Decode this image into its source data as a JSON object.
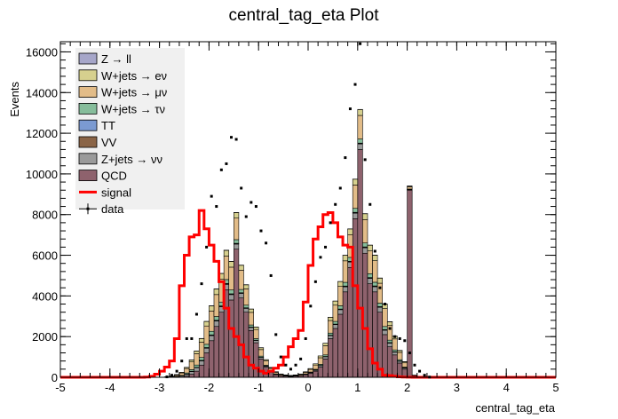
{
  "chart_data": {
    "type": "bar",
    "title": "central_tag_eta Plot",
    "xlabel": "central_tag_eta",
    "ylabel": "Events",
    "xlim": [
      -5,
      5
    ],
    "ylim": [
      0,
      16500
    ],
    "x_ticks": [
      "-5",
      "-4",
      "-3",
      "-2",
      "-1",
      "0",
      "1",
      "2",
      "3",
      "4",
      "5"
    ],
    "y_ticks": [
      "0",
      "2000",
      "4000",
      "6000",
      "8000",
      "10000",
      "12000",
      "14000",
      "16000"
    ],
    "bin_edges_start": -5,
    "bin_width": 0.1,
    "stack_order": [
      "QCD",
      "Z+jets → νν",
      "VV",
      "TT",
      "W+jets → τν",
      "W+jets → μν",
      "W+jets → eν",
      "Z → ll"
    ],
    "series": [
      {
        "name": "Z → ll",
        "color": "#a6a6c9",
        "values": [
          0,
          0,
          0,
          0,
          0,
          0,
          0,
          0,
          0,
          0,
          0,
          0,
          0,
          0,
          0,
          0,
          0,
          0,
          0,
          0,
          0,
          0,
          0,
          1,
          1,
          2,
          3,
          4,
          6,
          7,
          7,
          8,
          8,
          8,
          8,
          8,
          7,
          6,
          5,
          4,
          3,
          3,
          2,
          2,
          1,
          1,
          1,
          1,
          0,
          0,
          0,
          0,
          0,
          1,
          1,
          1,
          2,
          2,
          3,
          4,
          5,
          6,
          7,
          8,
          8,
          8,
          8,
          8,
          7,
          7,
          6,
          4,
          3,
          2,
          1,
          1,
          0,
          0,
          0,
          0,
          0,
          0,
          0,
          0,
          0,
          0,
          0,
          0,
          0,
          0,
          0,
          0,
          0,
          0,
          0,
          0,
          0,
          0,
          0,
          0
        ]
      },
      {
        "name": "W+jets → eν",
        "color": "#d6d08e",
        "values": [
          0,
          0,
          0,
          0,
          0,
          0,
          0,
          0,
          0,
          0,
          0,
          0,
          0,
          0,
          0,
          0,
          0,
          0,
          0,
          0,
          2,
          4,
          10,
          20,
          35,
          55,
          90,
          130,
          180,
          220,
          250,
          270,
          280,
          285,
          280,
          270,
          240,
          200,
          160,
          120,
          90,
          60,
          40,
          25,
          15,
          10,
          8,
          10,
          15,
          25,
          40,
          60,
          90,
          120,
          160,
          200,
          240,
          270,
          280,
          285,
          290,
          285,
          280,
          270,
          250,
          220,
          180,
          130,
          90,
          55,
          35,
          20,
          10,
          4,
          2,
          0,
          0,
          0,
          0,
          0,
          0,
          0,
          0,
          0,
          0,
          0,
          0,
          0,
          0,
          0,
          0,
          0,
          0,
          0,
          0,
          0,
          0,
          0,
          0,
          0
        ]
      },
      {
        "name": "W+jets → μν",
        "color": "#e2bc88",
        "values": [
          0,
          0,
          0,
          0,
          0,
          0,
          0,
          0,
          0,
          0,
          0,
          0,
          0,
          0,
          0,
          0,
          0,
          0,
          0,
          0,
          3,
          8,
          25,
          60,
          120,
          220,
          380,
          560,
          750,
          900,
          1000,
          1080,
          1120,
          1150,
          1120,
          1060,
          950,
          800,
          620,
          450,
          320,
          210,
          130,
          80,
          45,
          30,
          25,
          30,
          45,
          80,
          130,
          210,
          320,
          450,
          620,
          800,
          950,
          1060,
          1120,
          1150,
          1160,
          1150,
          1120,
          1060,
          980,
          880,
          720,
          540,
          360,
          210,
          110,
          50,
          20,
          8,
          3,
          0,
          0,
          0,
          0,
          0,
          0,
          0,
          0,
          0,
          0,
          0,
          0,
          0,
          0,
          0,
          0,
          0,
          0,
          0,
          0,
          0,
          0,
          0,
          0,
          0
        ]
      },
      {
        "name": "W+jets → τν",
        "color": "#86bd9b",
        "values": [
          0,
          0,
          0,
          0,
          0,
          0,
          0,
          0,
          0,
          0,
          0,
          0,
          0,
          0,
          0,
          0,
          0,
          0,
          0,
          0,
          1,
          3,
          8,
          15,
          30,
          50,
          80,
          110,
          140,
          160,
          175,
          185,
          190,
          195,
          190,
          180,
          160,
          130,
          100,
          75,
          55,
          35,
          25,
          15,
          10,
          8,
          6,
          8,
          10,
          15,
          25,
          35,
          55,
          75,
          100,
          130,
          160,
          180,
          190,
          195,
          200,
          195,
          190,
          180,
          170,
          150,
          120,
          90,
          60,
          35,
          20,
          10,
          5,
          2,
          1,
          0,
          0,
          0,
          0,
          0,
          0,
          0,
          0,
          0,
          0,
          0,
          0,
          0,
          0,
          0,
          0,
          0,
          0,
          0,
          0,
          0,
          0,
          0,
          0,
          0
        ]
      },
      {
        "name": "TT",
        "color": "#7b9ad1",
        "values": [
          0,
          0,
          0,
          0,
          0,
          0,
          0,
          0,
          0,
          0,
          0,
          0,
          0,
          0,
          0,
          0,
          0,
          0,
          0,
          0,
          0,
          0,
          1,
          2,
          3,
          5,
          7,
          9,
          11,
          12,
          13,
          14,
          15,
          15,
          15,
          14,
          12,
          10,
          8,
          6,
          4,
          3,
          2,
          1,
          1,
          1,
          1,
          1,
          1,
          1,
          2,
          3,
          4,
          6,
          8,
          10,
          12,
          14,
          15,
          15,
          15,
          15,
          14,
          14,
          13,
          12,
          10,
          8,
          6,
          4,
          3,
          2,
          1,
          0,
          0,
          0,
          0,
          0,
          0,
          0,
          0,
          0,
          0,
          0,
          0,
          0,
          0,
          0,
          0,
          0,
          0,
          0,
          0,
          0,
          0,
          0,
          0,
          0,
          0,
          0
        ]
      },
      {
        "name": "VV",
        "color": "#8a6446",
        "values": [
          0,
          0,
          0,
          0,
          0,
          0,
          0,
          0,
          0,
          0,
          0,
          0,
          0,
          0,
          0,
          0,
          0,
          0,
          0,
          0,
          0,
          0,
          1,
          2,
          4,
          7,
          10,
          14,
          18,
          20,
          22,
          24,
          25,
          26,
          25,
          23,
          20,
          17,
          14,
          10,
          7,
          5,
          3,
          2,
          1,
          1,
          1,
          1,
          1,
          2,
          3,
          5,
          7,
          10,
          14,
          17,
          20,
          23,
          25,
          26,
          26,
          26,
          25,
          24,
          22,
          20,
          17,
          13,
          9,
          6,
          3,
          2,
          1,
          0,
          0,
          0,
          0,
          0,
          0,
          0,
          0,
          0,
          0,
          0,
          0,
          0,
          0,
          0,
          0,
          0,
          0,
          0,
          0,
          0,
          0,
          0,
          0,
          0,
          0,
          0
        ]
      },
      {
        "name": "Z+jets → νν",
        "color": "#9a9a9a",
        "values": [
          0,
          0,
          0,
          0,
          0,
          0,
          0,
          0,
          0,
          0,
          0,
          0,
          0,
          0,
          0,
          0,
          0,
          0,
          0,
          0,
          2,
          5,
          15,
          30,
          55,
          90,
          130,
          170,
          205,
          230,
          250,
          265,
          270,
          270,
          265,
          250,
          225,
          190,
          150,
          110,
          75,
          50,
          30,
          18,
          10,
          7,
          6,
          7,
          10,
          18,
          30,
          50,
          75,
          110,
          150,
          190,
          225,
          250,
          265,
          270,
          275,
          270,
          265,
          255,
          240,
          215,
          180,
          135,
          90,
          55,
          30,
          15,
          5,
          2,
          1,
          0,
          0,
          0,
          0,
          0,
          0,
          0,
          0,
          0,
          0,
          0,
          0,
          0,
          0,
          0,
          0,
          0,
          0,
          0,
          0,
          0,
          0,
          0,
          0,
          0
        ]
      },
      {
        "name": "QCD",
        "color": "#8e626d",
        "values": [
          0,
          0,
          0,
          0,
          0,
          0,
          0,
          0,
          0,
          0,
          0,
          0,
          0,
          0,
          0,
          0,
          0,
          0,
          0,
          0,
          0,
          0,
          0,
          0,
          0,
          60,
          150,
          300,
          600,
          1200,
          1800,
          2500,
          3200,
          4300,
          3800,
          6300,
          3900,
          3200,
          2300,
          1700,
          900,
          500,
          250,
          130,
          80,
          60,
          40,
          60,
          80,
          130,
          200,
          300,
          500,
          900,
          1900,
          2400,
          3100,
          4200,
          5400,
          7800,
          11200,
          6100,
          4600,
          4200,
          3200,
          2100,
          1500,
          1100,
          700,
          400,
          9200,
          0,
          0,
          0,
          0,
          0,
          0,
          0,
          0,
          0,
          0,
          0,
          0,
          0,
          0,
          0,
          0,
          0,
          0,
          0,
          0,
          0,
          0,
          0,
          0,
          0,
          0,
          0,
          0,
          0
        ]
      },
      {
        "name": "signal",
        "color": "#ff0000",
        "values": [
          0,
          0,
          0,
          0,
          0,
          0,
          0,
          0,
          0,
          0,
          0,
          0,
          0,
          0,
          0,
          0,
          0,
          10,
          50,
          150,
          300,
          500,
          800,
          1900,
          4500,
          6000,
          6900,
          7000,
          8200,
          7300,
          6500,
          5700,
          4700,
          3400,
          2400,
          2000,
          1600,
          1000,
          600,
          450,
          300,
          200,
          300,
          450,
          600,
          1000,
          1500,
          1900,
          2300,
          3700,
          5500,
          6800,
          7400,
          8000,
          8100,
          7600,
          6900,
          6500,
          6400,
          4500,
          3400,
          2400,
          1400,
          700,
          400,
          100,
          80,
          50,
          20,
          10,
          5,
          0,
          0,
          0,
          0,
          0,
          0,
          0,
          0,
          0,
          0,
          0,
          0,
          0,
          0,
          0,
          0,
          0,
          0,
          0,
          0,
          0,
          0,
          0,
          0,
          0,
          0,
          0,
          0,
          0
        ]
      },
      {
        "name": "data",
        "color": "#000000",
        "values": [
          0,
          0,
          0,
          0,
          0,
          0,
          0,
          0,
          0,
          0,
          0,
          0,
          0,
          0,
          0,
          0,
          0,
          0,
          0,
          0,
          0,
          20,
          100,
          300,
          800,
          1900,
          1900,
          3100,
          4600,
          6400,
          8900,
          8400,
          10200,
          10500,
          11800,
          11700,
          9300,
          7900,
          8600,
          8400,
          7200,
          6600,
          5000,
          2100,
          1000,
          600,
          400,
          600,
          900,
          1900,
          3500,
          4700,
          5900,
          6400,
          7600,
          8500,
          9300,
          10800,
          13200,
          14400,
          16400,
          10700,
          8500,
          6200,
          4400,
          3600,
          2400,
          2000,
          1900,
          1800,
          1200,
          600,
          300,
          100,
          10,
          0,
          0,
          0,
          0,
          0,
          0,
          0,
          0,
          0,
          0,
          0,
          0,
          0,
          0,
          0,
          0,
          0,
          0,
          0,
          0,
          0,
          0,
          0,
          0,
          0
        ]
      }
    ],
    "legend_position": "top-left",
    "legend": [
      {
        "label": "Z → ll",
        "kind": "fill",
        "color": "#a6a6c9"
      },
      {
        "label": "W+jets → eν",
        "kind": "fill",
        "color": "#d6d08e"
      },
      {
        "label": "W+jets → μν",
        "kind": "fill",
        "color": "#e2bc88"
      },
      {
        "label": "W+jets → τν",
        "kind": "fill",
        "color": "#86bd9b"
      },
      {
        "label": "TT",
        "kind": "fill",
        "color": "#7b9ad1"
      },
      {
        "label": "VV",
        "kind": "fill",
        "color": "#8a6446"
      },
      {
        "label": "Z+jets → νν",
        "kind": "fill",
        "color": "#9a9a9a"
      },
      {
        "label": "QCD",
        "kind": "fill",
        "color": "#8e626d"
      },
      {
        "label": "signal",
        "kind": "line",
        "color": "#ff0000"
      },
      {
        "label": "data",
        "kind": "marker",
        "color": "#000000"
      }
    ]
  }
}
